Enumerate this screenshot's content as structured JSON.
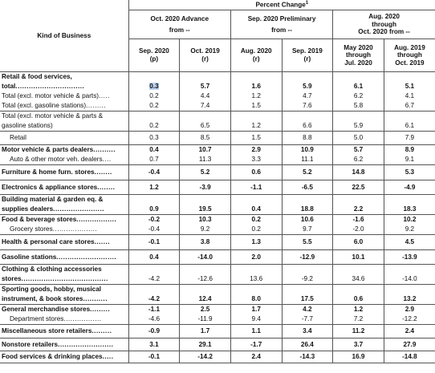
{
  "header": {
    "kind_of_business": "Kind of Business",
    "percent_change": "Percent Change",
    "percent_change_sup": "1",
    "groups": [
      {
        "line1": "Oct. 2020 Advance",
        "line2": "from --"
      },
      {
        "line1": "Sep. 2020 Preliminary",
        "line2": "from --"
      },
      {
        "line1": "Aug. 2020",
        "line2": "through",
        "line3": "Oct. 2020 from --"
      }
    ],
    "columns": [
      {
        "line1": "Sep. 2020",
        "line2": "(p)"
      },
      {
        "line1": "Oct. 2019",
        "line2": "(r)"
      },
      {
        "line1": "Aug. 2020",
        "line2": "(r)"
      },
      {
        "line1": "Sep. 2019",
        "line2": "(r)"
      },
      {
        "line1": "May 2020",
        "line2": "through",
        "line3": "Jul. 2020"
      },
      {
        "line1": "Aug. 2019",
        "line2": "through",
        "line3": "Oct. 2019"
      }
    ]
  },
  "rows": [
    {
      "lines": [
        {
          "text": "Retail & food services,",
          "bold": true
        },
        {
          "text": "total",
          "leader": "...............................",
          "bold": true
        },
        {
          "text": "Total (excl. motor vehicle & parts)",
          "leader": "....."
        },
        {
          "text": "Total (excl. gasoline stations)",
          "leader": "........."
        }
      ],
      "values": [
        [
          "0.3",
          "0.2",
          "0.2"
        ],
        [
          "5.7",
          "4.4",
          "7.4"
        ],
        [
          "1.6",
          "1.2",
          "1.5"
        ],
        [
          "5.9",
          "4.7",
          "7.6"
        ],
        [
          "6.1",
          "6.2",
          "5.8"
        ],
        [
          "5.1",
          "4.1",
          "6.7"
        ]
      ],
      "boldFirst": true,
      "offset": 1
    },
    {
      "lines": [
        {
          "text": "Total (excl. motor vehicle & parts &"
        },
        {
          "text": "gasoline stations)"
        }
      ],
      "values": [
        [
          "0.2"
        ],
        [
          "6.5"
        ],
        [
          "1.2"
        ],
        [
          "6.6"
        ],
        [
          "5.9"
        ],
        [
          "6.1"
        ]
      ],
      "offset": 1
    },
    {
      "lines": [
        {
          "text": "Retail",
          "indent": true
        }
      ],
      "values": [
        [
          "0.3"
        ],
        [
          "8.5"
        ],
        [
          "1.5"
        ],
        [
          "8.8"
        ],
        [
          "5.0"
        ],
        [
          "7.9"
        ]
      ]
    },
    {
      "lines": [
        {
          "text": "Motor vehicle & parts dealers",
          "leader": "..........",
          "bold": true
        },
        {
          "text": "Auto & other motor veh. dealers",
          "leader": "....",
          "indent": true
        }
      ],
      "values": [
        [
          "0.4",
          "0.7"
        ],
        [
          "10.7",
          "11.3"
        ],
        [
          "2.9",
          "3.3"
        ],
        [
          "10.9",
          "11.1"
        ],
        [
          "5.7",
          "6.2"
        ],
        [
          "8.9",
          "9.1"
        ]
      ],
      "boldFirst": true
    },
    {
      "lines": [
        {
          "text": "Furniture & home furn. stores",
          "leader": "........",
          "bold": true
        }
      ],
      "values": [
        [
          "-0.4"
        ],
        [
          "5.2"
        ],
        [
          "0.6"
        ],
        [
          "5.2"
        ],
        [
          "14.8"
        ],
        [
          "5.3"
        ]
      ],
      "boldFirst": true
    },
    {
      "lines": [
        {
          "text": "Electronics & appliance stores",
          "leader": "........",
          "bold": true
        }
      ],
      "values": [
        [
          "1.2"
        ],
        [
          "-3.9"
        ],
        [
          "-1.1"
        ],
        [
          "-6.5"
        ],
        [
          "22.5"
        ],
        [
          "-4.9"
        ]
      ],
      "boldFirst": true
    },
    {
      "lines": [
        {
          "text": "Building material & garden eq. &",
          "bold": true
        },
        {
          "text": "supplies dealers",
          "leader": ".......................",
          "bold": true
        }
      ],
      "values": [
        [
          "0.9"
        ],
        [
          "19.5"
        ],
        [
          "0.4"
        ],
        [
          "18.8"
        ],
        [
          "2.2"
        ],
        [
          "18.3"
        ]
      ],
      "boldFirst": true,
      "offset": 1
    },
    {
      "lines": [
        {
          "text": "Food & beverage stores",
          "leader": "..................",
          "bold": true
        },
        {
          "text": "Grocery stores",
          "leader": "....................",
          "indent": true
        }
      ],
      "values": [
        [
          "-0.2",
          "-0.4"
        ],
        [
          "10.3",
          "9.2"
        ],
        [
          "0.2",
          "0.2"
        ],
        [
          "10.6",
          "9.7"
        ],
        [
          "-1.6",
          "-2.0"
        ],
        [
          "10.2",
          "9.2"
        ]
      ],
      "boldFirst": true
    },
    {
      "lines": [
        {
          "text": "Health & personal care stores",
          "leader": ".......",
          "bold": true
        }
      ],
      "values": [
        [
          "-0.1"
        ],
        [
          "3.8"
        ],
        [
          "1.3"
        ],
        [
          "5.5"
        ],
        [
          "6.0"
        ],
        [
          "4.5"
        ]
      ],
      "boldFirst": true
    },
    {
      "lines": [
        {
          "text": "Gasoline stations",
          "leader": "...........................",
          "bold": true
        }
      ],
      "values": [
        [
          "0.4"
        ],
        [
          "-14.0"
        ],
        [
          "2.0"
        ],
        [
          "-12.9"
        ],
        [
          "10.1"
        ],
        [
          "-13.9"
        ]
      ],
      "boldFirst": true
    },
    {
      "lines": [
        {
          "text": "Clothing & clothing accessories",
          "bold": true
        },
        {
          "text": "stores",
          "leader": ".......................................",
          "bold": true
        }
      ],
      "values": [
        [
          "-4.2"
        ],
        [
          "-12.6"
        ],
        [
          "13.6"
        ],
        [
          "-9.2"
        ],
        [
          "34.6"
        ],
        [
          "-14.0"
        ]
      ],
      "offset": 1
    },
    {
      "lines": [
        {
          "text": "Sporting goods, hobby, musical",
          "bold": true
        },
        {
          "text": "instrument, & book stores",
          "leader": "...........",
          "bold": true
        }
      ],
      "values": [
        [
          "-4.2"
        ],
        [
          "12.4"
        ],
        [
          "8.0"
        ],
        [
          "17.5"
        ],
        [
          "0.6"
        ],
        [
          "13.2"
        ]
      ],
      "boldFirst": true,
      "offset": 1
    },
    {
      "lines": [
        {
          "text": "General merchandise stores",
          "leader": ".........",
          "bold": true
        },
        {
          "text": "Department stores",
          "leader": ".................",
          "indent": true
        }
      ],
      "values": [
        [
          "-1.1",
          "-4.6"
        ],
        [
          "2.5",
          "-11.9"
        ],
        [
          "1.7",
          "9.4"
        ],
        [
          "4.2",
          "-7.7"
        ],
        [
          "1.2",
          "7.2"
        ],
        [
          "2.9",
          "-12.2"
        ]
      ],
      "boldFirst": true
    },
    {
      "lines": [
        {
          "text": "Miscellaneous store retailers",
          "leader": ".........",
          "bold": true
        }
      ],
      "values": [
        [
          "-0.9"
        ],
        [
          "1.7"
        ],
        [
          "1.1"
        ],
        [
          "3.4"
        ],
        [
          "11.2"
        ],
        [
          "2.4"
        ]
      ],
      "boldFirst": true
    },
    {
      "lines": [
        {
          "text": "Nonstore retailers",
          "leader": ".........................",
          "bold": true
        }
      ],
      "values": [
        [
          "3.1"
        ],
        [
          "29.1"
        ],
        [
          "-1.7"
        ],
        [
          "26.4"
        ],
        [
          "3.7"
        ],
        [
          "27.9"
        ]
      ],
      "boldFirst": true
    },
    {
      "lines": [
        {
          "text": "Food services & drinking places",
          "leader": ".....",
          "bold": true
        }
      ],
      "values": [
        [
          "-0.1"
        ],
        [
          "-14.2"
        ],
        [
          "2.4"
        ],
        [
          "-14.3"
        ],
        [
          "16.9"
        ],
        [
          "-14.8"
        ]
      ],
      "boldFirst": true
    }
  ]
}
